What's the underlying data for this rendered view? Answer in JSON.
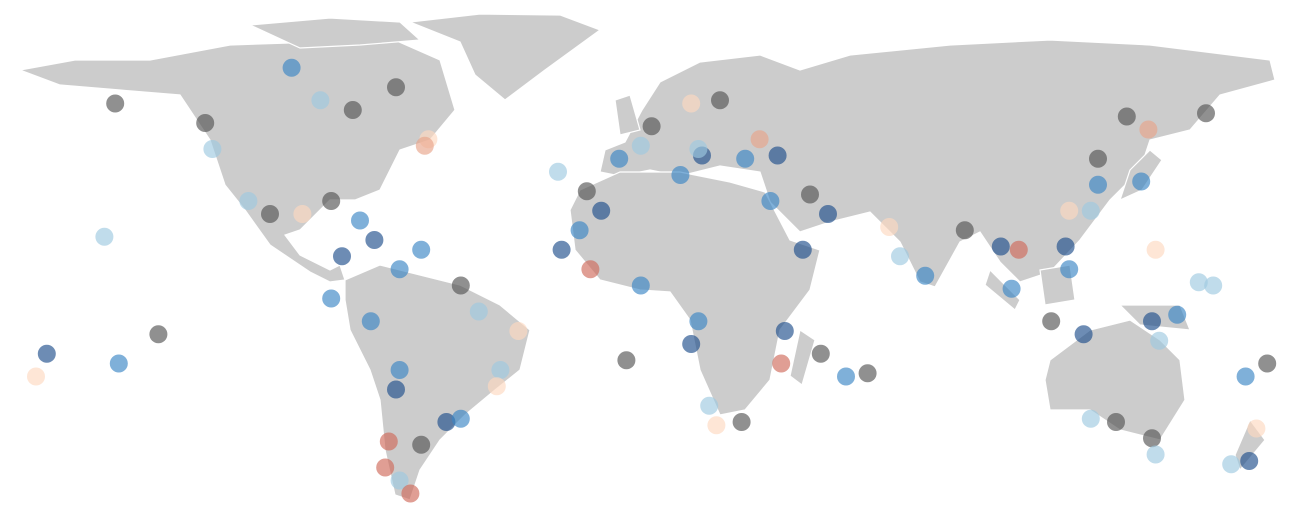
{
  "map": {
    "points": [
      {
        "lon": -143,
        "lat": 58,
        "color": "#555555"
      },
      {
        "lon": -118,
        "lat": 52,
        "color": "#555555"
      },
      {
        "lon": -77,
        "lat": 56,
        "color": "#555555"
      },
      {
        "lon": -65,
        "lat": 63,
        "color": "#555555"
      },
      {
        "lon": -12,
        "lat": 31,
        "color": "#555555"
      },
      {
        "lon": -1,
        "lat": -21,
        "color": "#555555"
      },
      {
        "lon": -131,
        "lat": -13,
        "color": "#555555"
      },
      {
        "lon": 31,
        "lat": -40,
        "color": "#555555"
      },
      {
        "lon": 66,
        "lat": -25,
        "color": "#555555"
      },
      {
        "lon": 138,
        "lat": 54,
        "color": "#555555"
      },
      {
        "lon": 160,
        "lat": 55,
        "color": "#555555"
      },
      {
        "lon": 135,
        "lat": -40,
        "color": "#555555"
      },
      {
        "lon": 145,
        "lat": -45,
        "color": "#555555"
      },
      {
        "lon": 177,
        "lat": -22,
        "color": "#555555"
      },
      {
        "lon": 53,
        "lat": -19,
        "color": "#555555"
      },
      {
        "lon": 117,
        "lat": -9,
        "color": "#555555"
      },
      {
        "lon": 93,
        "lat": 19,
        "color": "#555555"
      },
      {
        "lon": -58,
        "lat": -47,
        "color": "#555555"
      },
      {
        "lon": -83,
        "lat": 28,
        "color": "#555555"
      },
      {
        "lon": 130,
        "lat": 41,
        "color": "#555555"
      },
      {
        "lon": -100,
        "lat": 24,
        "color": "#555555"
      },
      {
        "lon": -47,
        "lat": 2,
        "color": "#555555"
      },
      {
        "lon": 50,
        "lat": 30,
        "color": "#555555"
      },
      {
        "lon": 6,
        "lat": 51,
        "color": "#555555"
      },
      {
        "lon": 25,
        "lat": 59,
        "color": "#555555"
      },
      {
        "lon": -162,
        "lat": -19,
        "color": "#1f4e8c"
      },
      {
        "lon": -19,
        "lat": 13,
        "color": "#1f4e8c"
      },
      {
        "lon": -8,
        "lat": 25,
        "color": "#1f4e8c"
      },
      {
        "lon": 20,
        "lat": 42,
        "color": "#1f4e8c"
      },
      {
        "lon": 41,
        "lat": 42,
        "color": "#1f4e8c"
      },
      {
        "lon": 55,
        "lat": 24,
        "color": "#1f4e8c"
      },
      {
        "lon": 43,
        "lat": -12,
        "color": "#1f4e8c"
      },
      {
        "lon": 126,
        "lat": -13,
        "color": "#1f4e8c"
      },
      {
        "lon": 145,
        "lat": -9,
        "color": "#1f4e8c"
      },
      {
        "lon": -51,
        "lat": -40,
        "color": "#1f4e8c"
      },
      {
        "lon": -65,
        "lat": -30,
        "color": "#1f4e8c"
      },
      {
        "lon": 172,
        "lat": -52,
        "color": "#1f4e8c"
      },
      {
        "lon": 103,
        "lat": 14,
        "color": "#1f4e8c"
      },
      {
        "lon": 121,
        "lat": 14,
        "color": "#1f4e8c"
      },
      {
        "lon": -71,
        "lat": 16,
        "color": "#1f4e8c"
      },
      {
        "lon": -80,
        "lat": 11,
        "color": "#1f4e8c"
      },
      {
        "lon": 17,
        "lat": -16,
        "color": "#1f4e8c"
      },
      {
        "lon": 48,
        "lat": 13,
        "color": "#1f4e8c"
      },
      {
        "lon": -94,
        "lat": 69,
        "color": "#3a85c4"
      },
      {
        "lon": -83,
        "lat": -2,
        "color": "#3a85c4"
      },
      {
        "lon": -142,
        "lat": -22,
        "color": "#3a85c4"
      },
      {
        "lon": 32,
        "lat": 41,
        "color": "#3a85c4"
      },
      {
        "lon": 14,
        "lat": 36,
        "color": "#3a85c4"
      },
      {
        "lon": 39,
        "lat": 28,
        "color": "#3a85c4"
      },
      {
        "lon": -14,
        "lat": 19,
        "color": "#3a85c4"
      },
      {
        "lon": 3,
        "lat": 2,
        "color": "#3a85c4"
      },
      {
        "lon": 19,
        "lat": -9,
        "color": "#3a85c4"
      },
      {
        "lon": 82,
        "lat": 5,
        "color": "#3a85c4"
      },
      {
        "lon": 106,
        "lat": 1,
        "color": "#3a85c4"
      },
      {
        "lon": 122,
        "lat": 7,
        "color": "#3a85c4"
      },
      {
        "lon": 142,
        "lat": 34,
        "color": "#3a85c4"
      },
      {
        "lon": 171,
        "lat": -26,
        "color": "#3a85c4"
      },
      {
        "lon": -64,
        "lat": 7,
        "color": "#3a85c4"
      },
      {
        "lon": -75,
        "lat": 22,
        "color": "#3a85c4"
      },
      {
        "lon": -58,
        "lat": 13,
        "color": "#3a85c4"
      },
      {
        "lon": -72,
        "lat": -9,
        "color": "#3a85c4"
      },
      {
        "lon": -64,
        "lat": -24,
        "color": "#3a85c4"
      },
      {
        "lon": -47,
        "lat": -39,
        "color": "#3a85c4"
      },
      {
        "lon": 60,
        "lat": -26,
        "color": "#3a85c4"
      },
      {
        "lon": -3,
        "lat": 41,
        "color": "#3a85c4"
      },
      {
        "lon": 130,
        "lat": 33,
        "color": "#3a85c4"
      },
      {
        "lon": 152,
        "lat": -7,
        "color": "#3a85c4"
      },
      {
        "lon": -146,
        "lat": 17,
        "color": "#9ecae1"
      },
      {
        "lon": -86,
        "lat": 59,
        "color": "#9ecae1"
      },
      {
        "lon": -116,
        "lat": 44,
        "color": "#9ecae1"
      },
      {
        "lon": -20,
        "lat": 37,
        "color": "#9ecae1"
      },
      {
        "lon": 3,
        "lat": 45,
        "color": "#9ecae1"
      },
      {
        "lon": 19,
        "lat": 44,
        "color": "#9ecae1"
      },
      {
        "lon": -106,
        "lat": 28,
        "color": "#9ecae1"
      },
      {
        "lon": 158,
        "lat": 3,
        "color": "#9ecae1"
      },
      {
        "lon": 162,
        "lat": 2,
        "color": "#9ecae1"
      },
      {
        "lon": -42,
        "lat": -6,
        "color": "#9ecae1"
      },
      {
        "lon": -36,
        "lat": -24,
        "color": "#9ecae1"
      },
      {
        "lon": 22,
        "lat": -35,
        "color": "#9ecae1"
      },
      {
        "lon": 147,
        "lat": -15,
        "color": "#9ecae1"
      },
      {
        "lon": 128,
        "lat": -39,
        "color": "#9ecae1"
      },
      {
        "lon": 167,
        "lat": -53,
        "color": "#9ecae1"
      },
      {
        "lon": 146,
        "lat": -50,
        "color": "#9ecae1"
      },
      {
        "lon": 75,
        "lat": 11,
        "color": "#9ecae1"
      },
      {
        "lon": 128,
        "lat": 25,
        "color": "#9ecae1"
      },
      {
        "lon": -64,
        "lat": -58,
        "color": "#9ecae1"
      },
      {
        "lon": -165,
        "lat": -26,
        "color": "#fdd9c0"
      },
      {
        "lon": 146,
        "lat": 13,
        "color": "#fdd9c0"
      },
      {
        "lon": 24,
        "lat": -41,
        "color": "#fdd9c0"
      },
      {
        "lon": -31,
        "lat": -12,
        "color": "#fdd9c0"
      },
      {
        "lon": 72,
        "lat": 20,
        "color": "#fdd9c0"
      },
      {
        "lon": 144,
        "lat": 50,
        "color": "#e8a58a"
      },
      {
        "lon": 122,
        "lat": 25,
        "color": "#fdd9c0"
      },
      {
        "lon": -56,
        "lat": 47,
        "color": "#fdd9c0"
      },
      {
        "lon": 17,
        "lat": 58,
        "color": "#fdd9c0"
      },
      {
        "lon": -37,
        "lat": -29,
        "color": "#fdd9c0"
      },
      {
        "lon": 174,
        "lat": -42,
        "color": "#fdd9c0"
      },
      {
        "lon": -91,
        "lat": 24,
        "color": "#fdd9c0"
      },
      {
        "lon": -68,
        "lat": -54,
        "color": "#d06a5a"
      },
      {
        "lon": -61,
        "lat": -62,
        "color": "#d06a5a"
      },
      {
        "lon": -67,
        "lat": -46,
        "color": "#d06a5a"
      },
      {
        "lon": 42,
        "lat": -22,
        "color": "#d06a5a"
      },
      {
        "lon": 108,
        "lat": 13,
        "color": "#d06a5a"
      },
      {
        "lon": -11,
        "lat": 7,
        "color": "#d06a5a"
      },
      {
        "lon": 36,
        "lat": 47,
        "color": "#e8a58a"
      },
      {
        "lon": -57,
        "lat": 45,
        "color": "#e8a58a"
      }
    ]
  }
}
